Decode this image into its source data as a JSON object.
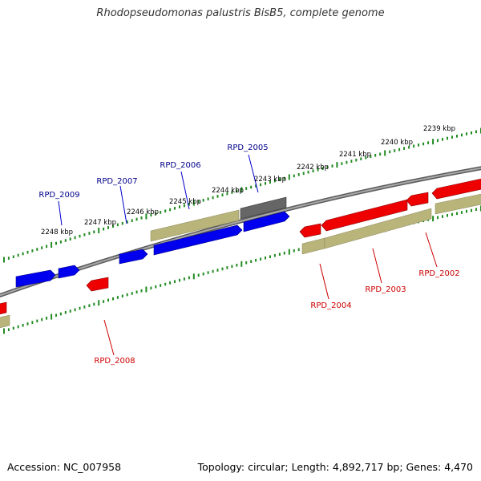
{
  "title": "Rhodopseudomonas palustris BisB5, complete genome",
  "footer": {
    "accession": "Accession: NC_007958",
    "stats": "Topology: circular; Length: 4,892,717 bp; Genes: 4,470"
  },
  "colors": {
    "forward_gene": "#0000ee",
    "reverse_gene": "#ee0000",
    "feature_band": "#b8b47a",
    "other_gene": "#666666",
    "backbone": "#888888",
    "ticks": "#228b22",
    "forward_label": "#00008b",
    "reverse_label": "#cc0000"
  },
  "scale_labels": [
    "2239 kbp",
    "2240 kbp",
    "2241 kbp",
    "2242 kbp",
    "2243 kbp",
    "2244 kbp",
    "2245 kbp",
    "2246 kbp",
    "2247 kbp",
    "2248 kbp"
  ],
  "gene_labels": {
    "forward": [
      "RPD_2005",
      "RPD_2006",
      "RPD_2007",
      "RPD_2009"
    ],
    "reverse": [
      "RPD_2002",
      "RPD_2003",
      "RPD_2004",
      "RPD_2008"
    ]
  }
}
